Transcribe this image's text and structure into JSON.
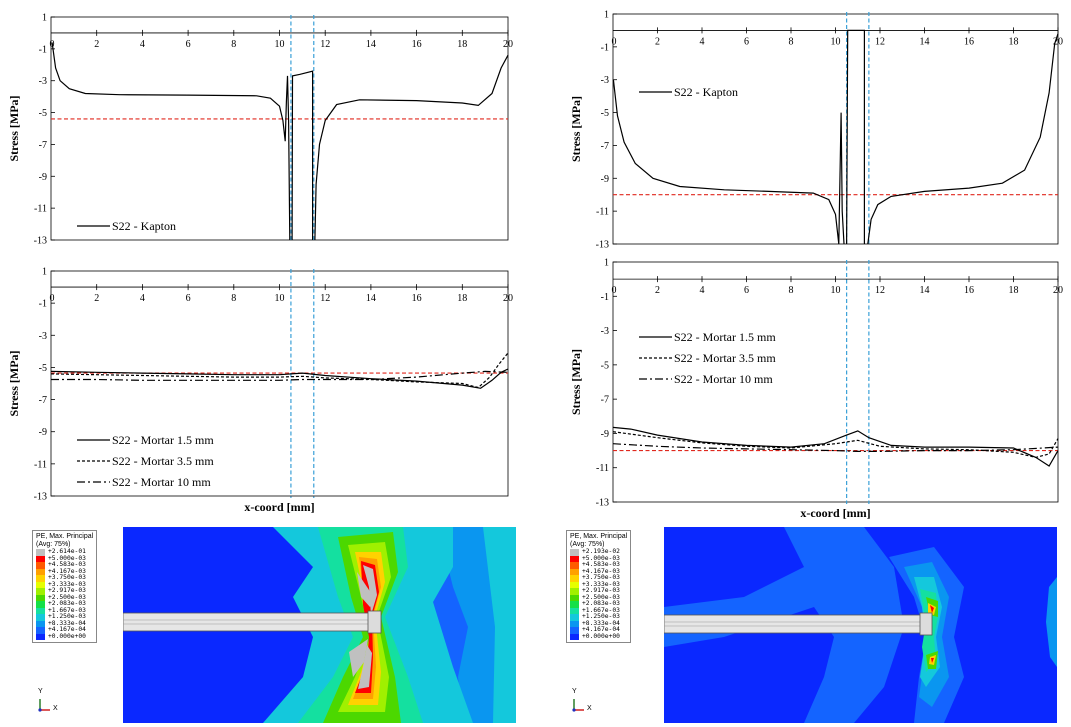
{
  "chart_data": [
    {
      "type": "line",
      "panel": "top-left",
      "xlabel": "",
      "ylabel": "Stress [MPa]",
      "xlim": [
        0,
        20
      ],
      "ylim": [
        -13,
        1
      ],
      "xticks": [
        2,
        4,
        6,
        8,
        10,
        12,
        14,
        16,
        18,
        20
      ],
      "xtick_zero_label": "0",
      "yticks": [
        1,
        -1,
        -3,
        -5,
        -7,
        -9,
        -11,
        -13
      ],
      "vlines": [
        10.5,
        11.5
      ],
      "reference_line": -5.4,
      "legend_position": "bottom-left",
      "series": [
        {
          "name": "S22 - Kapton",
          "style": "solid",
          "segments": [
            [
              [
                0.05,
                -0.6
              ],
              [
                0.2,
                -2.2
              ],
              [
                0.4,
                -3.0
              ],
              [
                0.8,
                -3.5
              ],
              [
                1.5,
                -3.8
              ],
              [
                3,
                -3.88
              ],
              [
                6,
                -3.9
              ],
              [
                9,
                -3.95
              ],
              [
                9.6,
                -4.1
              ],
              [
                10.0,
                -4.6
              ],
              [
                10.15,
                -5.5
              ],
              [
                10.25,
                -6.8
              ],
              [
                10.3,
                -4.3
              ],
              [
                10.35,
                -2.7
              ],
              [
                10.4,
                -5.5
              ],
              [
                10.45,
                -13
              ]
            ],
            [
              [
                10.55,
                -13
              ],
              [
                10.57,
                -2.7
              ],
              [
                10.9,
                -2.6
              ],
              [
                11.45,
                -2.4
              ],
              [
                11.45,
                -13
              ]
            ],
            [
              [
                11.55,
                -13
              ],
              [
                11.6,
                -9.5
              ],
              [
                11.75,
                -7.0
              ],
              [
                12.0,
                -5.5
              ],
              [
                12.5,
                -4.5
              ],
              [
                13.5,
                -4.2
              ],
              [
                16,
                -4.25
              ],
              [
                18,
                -4.4
              ],
              [
                18.7,
                -4.55
              ],
              [
                19.3,
                -3.8
              ],
              [
                19.7,
                -2.2
              ],
              [
                20,
                -1.4
              ]
            ]
          ]
        }
      ]
    },
    {
      "type": "line",
      "panel": "top-right",
      "xlabel": "",
      "ylabel": "Stress [MPa]",
      "xlim": [
        0,
        20
      ],
      "ylim": [
        -13,
        1
      ],
      "xticks": [
        2,
        4,
        6,
        8,
        10,
        12,
        14,
        16,
        18,
        20
      ],
      "xtick_zero_label": "0",
      "yticks": [
        1,
        -1,
        -3,
        -5,
        -7,
        -9,
        -11,
        -13
      ],
      "vlines": [
        10.5,
        11.5
      ],
      "reference_line": -10.0,
      "legend_position": "top-left",
      "series": [
        {
          "name": "S22 - Kapton",
          "style": "solid",
          "segments": [
            [
              [
                0.02,
                -3.0
              ],
              [
                0.2,
                -5.2
              ],
              [
                0.5,
                -6.8
              ],
              [
                1,
                -8.1
              ],
              [
                1.8,
                -9.0
              ],
              [
                3,
                -9.5
              ],
              [
                5,
                -9.7
              ],
              [
                7,
                -9.8
              ],
              [
                9,
                -9.9
              ],
              [
                9.7,
                -10.3
              ],
              [
                10.0,
                -11.2
              ],
              [
                10.15,
                -13
              ],
              [
                10.25,
                -5.0
              ],
              [
                10.3,
                -11.0
              ],
              [
                10.38,
                -13
              ]
            ],
            [
              [
                10.5,
                -13
              ],
              [
                10.55,
                0
              ],
              [
                11.3,
                0
              ],
              [
                11.3,
                -13
              ]
            ],
            [
              [
                11.45,
                -13
              ],
              [
                11.6,
                -11.5
              ],
              [
                11.9,
                -10.6
              ],
              [
                12.5,
                -10.1
              ],
              [
                14,
                -9.8
              ],
              [
                16,
                -9.6
              ],
              [
                17.5,
                -9.3
              ],
              [
                18.5,
                -8.5
              ],
              [
                19.2,
                -6.5
              ],
              [
                19.6,
                -3.8
              ],
              [
                19.85,
                -0.8
              ],
              [
                20,
                -0.2
              ]
            ]
          ]
        }
      ]
    },
    {
      "type": "line",
      "panel": "bottom-left",
      "xlabel": "x-coord [mm]",
      "ylabel": "Stress [MPa]",
      "xlim": [
        0,
        20
      ],
      "ylim": [
        -13,
        1
      ],
      "xticks": [
        2,
        4,
        6,
        8,
        10,
        12,
        14,
        16,
        18,
        20
      ],
      "xtick_zero_label": "0",
      "yticks": [
        1,
        -1,
        -3,
        -5,
        -7,
        -9,
        -11,
        -13
      ],
      "vlines": [
        10.5,
        11.5
      ],
      "reference_line": -5.35,
      "legend_position": "bottom-left",
      "series": [
        {
          "name": "S22 - Mortar 1.5 mm",
          "style": "solid",
          "segments": [
            [
              [
                0,
                -5.25
              ],
              [
                2,
                -5.3
              ],
              [
                4,
                -5.35
              ],
              [
                6,
                -5.4
              ],
              [
                8,
                -5.45
              ],
              [
                10,
                -5.45
              ],
              [
                11,
                -5.35
              ],
              [
                12,
                -5.5
              ],
              [
                14,
                -5.7
              ],
              [
                16,
                -5.85
              ],
              [
                18,
                -6.1
              ],
              [
                18.8,
                -6.3
              ],
              [
                19.3,
                -5.8
              ],
              [
                19.7,
                -5.3
              ],
              [
                20,
                -5.1
              ]
            ]
          ]
        },
        {
          "name": "S22 - Mortar 3.5 mm",
          "style": "dashed",
          "segments": [
            [
              [
                0,
                -5.4
              ],
              [
                2,
                -5.45
              ],
              [
                4,
                -5.5
              ],
              [
                6,
                -5.55
              ],
              [
                8,
                -5.6
              ],
              [
                10,
                -5.6
              ],
              [
                11,
                -5.55
              ],
              [
                12,
                -5.65
              ],
              [
                14,
                -5.75
              ],
              [
                16,
                -5.9
              ],
              [
                18,
                -6.0
              ],
              [
                18.7,
                -6.25
              ],
              [
                19.2,
                -5.6
              ],
              [
                19.6,
                -4.8
              ],
              [
                20,
                -4.1
              ]
            ]
          ]
        },
        {
          "name": "S22 - Mortar 10 mm",
          "style": "dashdot",
          "segments": [
            [
              [
                0,
                -5.75
              ],
              [
                2,
                -5.75
              ],
              [
                4,
                -5.8
              ],
              [
                6,
                -5.8
              ],
              [
                8,
                -5.8
              ],
              [
                10,
                -5.8
              ],
              [
                11,
                -5.75
              ],
              [
                12,
                -5.75
              ],
              [
                14,
                -5.75
              ],
              [
                16,
                -5.6
              ],
              [
                18,
                -5.35
              ],
              [
                19,
                -5.25
              ],
              [
                20,
                -5.3
              ]
            ]
          ]
        }
      ]
    },
    {
      "type": "line",
      "panel": "bottom-right",
      "xlabel": "x-coord [mm]",
      "ylabel": "Stress [MPa]",
      "xlim": [
        0,
        20
      ],
      "ylim": [
        -13,
        1
      ],
      "xticks": [
        2,
        4,
        6,
        8,
        10,
        12,
        14,
        16,
        18,
        20
      ],
      "xtick_zero_label": "0",
      "yticks": [
        1,
        -1,
        -3,
        -5,
        -7,
        -9,
        -11,
        -13
      ],
      "vlines": [
        10.5,
        11.5
      ],
      "reference_line": -10.0,
      "legend_position": "top-left",
      "series": [
        {
          "name": "S22 - Mortar 1.5 mm",
          "style": "solid",
          "segments": [
            [
              [
                0,
                -8.65
              ],
              [
                0.8,
                -8.75
              ],
              [
                2,
                -9.1
              ],
              [
                4,
                -9.5
              ],
              [
                6,
                -9.7
              ],
              [
                8,
                -9.8
              ],
              [
                9.5,
                -9.6
              ],
              [
                10.5,
                -9.1
              ],
              [
                11,
                -8.85
              ],
              [
                11.5,
                -9.25
              ],
              [
                12.5,
                -9.7
              ],
              [
                14,
                -9.8
              ],
              [
                16,
                -9.8
              ],
              [
                18,
                -9.85
              ],
              [
                19,
                -10.4
              ],
              [
                19.6,
                -10.9
              ],
              [
                20,
                -10.0
              ]
            ]
          ]
        },
        {
          "name": "S22 - Mortar 3.5 mm",
          "style": "dashed",
          "segments": [
            [
              [
                0,
                -8.9
              ],
              [
                2,
                -9.25
              ],
              [
                4,
                -9.55
              ],
              [
                6,
                -9.75
              ],
              [
                8,
                -9.85
              ],
              [
                10,
                -9.6
              ],
              [
                11,
                -9.4
              ],
              [
                12,
                -9.75
              ],
              [
                14,
                -9.9
              ],
              [
                16,
                -9.95
              ],
              [
                18,
                -10.1
              ],
              [
                19,
                -10.4
              ],
              [
                19.6,
                -10.2
              ],
              [
                20,
                -9.3
              ]
            ]
          ]
        },
        {
          "name": "S22 - Mortar 10 mm",
          "style": "dashdot",
          "segments": [
            [
              [
                0,
                -9.6
              ],
              [
                2,
                -9.75
              ],
              [
                4,
                -9.85
              ],
              [
                6,
                -9.9
              ],
              [
                8,
                -9.95
              ],
              [
                10,
                -10.0
              ],
              [
                11,
                -10.05
              ],
              [
                12,
                -10.05
              ],
              [
                14,
                -10.0
              ],
              [
                16,
                -10.0
              ],
              [
                18,
                -9.95
              ],
              [
                20,
                -9.8
              ]
            ]
          ]
        }
      ]
    }
  ],
  "contours": [
    {
      "panel": "contour-left",
      "legend_title_1": "PE, Max. Principal",
      "legend_title_2": "(Avg: 75%)",
      "legend_values": [
        "+2.614e-01",
        "+5.000e-03",
        "+4.583e-03",
        "+4.167e-03",
        "+3.750e-03",
        "+3.333e-03",
        "+2.917e-03",
        "+2.500e-03",
        "+2.083e-03",
        "+1.667e-03",
        "+1.250e-03",
        "+8.333e-04",
        "+4.167e-04",
        "+0.000e+00"
      ],
      "triad_y": "Y",
      "triad_x": "X"
    },
    {
      "panel": "contour-right",
      "legend_title_1": "PE, Max. Principal",
      "legend_title_2": "(Avg: 75%)",
      "legend_values": [
        "+2.193e-02",
        "+5.000e-03",
        "+4.583e-03",
        "+4.167e-03",
        "+3.750e-03",
        "+3.333e-03",
        "+2.917e-03",
        "+2.500e-03",
        "+2.083e-03",
        "+1.667e-03",
        "+1.250e-03",
        "+8.333e-04",
        "+4.167e-04",
        "+0.000e+00"
      ],
      "triad_y": "Y",
      "triad_x": "X"
    }
  ],
  "colors": {
    "reference_line": "#e0281e",
    "vline": "#3aa0d8",
    "contour_scale": [
      "#c0c0c0",
      "#ff0000",
      "#ff5a00",
      "#ffa000",
      "#ffd200",
      "#e6ff00",
      "#a0f000",
      "#4cd800",
      "#14e048",
      "#14e0a0",
      "#14c8dc",
      "#0a96f0",
      "#1464ff",
      "#0a28ff"
    ]
  }
}
